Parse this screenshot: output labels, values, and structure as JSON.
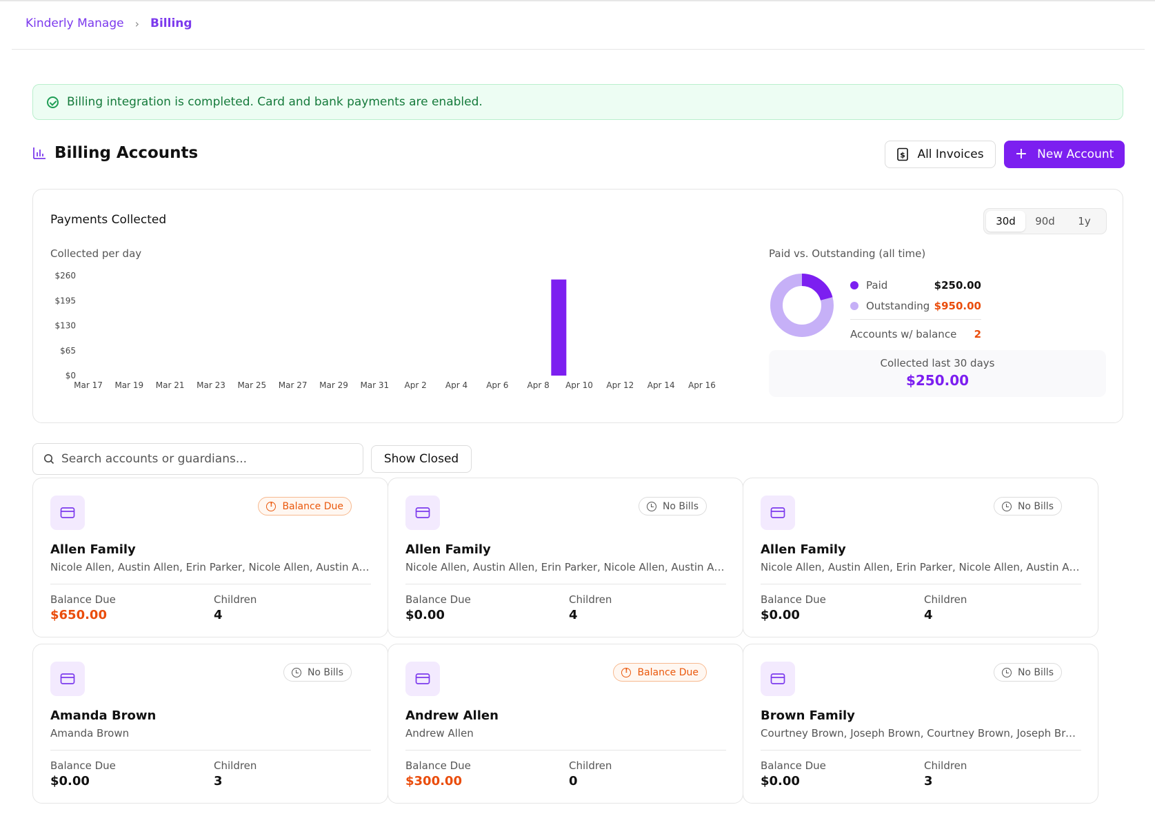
{
  "breadcrumb": {
    "root": "Kinderly Manage",
    "current": "Billing"
  },
  "alert": {
    "message": "Billing integration is completed. Card and bank payments are enabled."
  },
  "section": {
    "title": "Billing Accounts",
    "icon": "bar-chart-icon"
  },
  "actions": {
    "all_invoices": "All Invoices",
    "new_account": "New Account"
  },
  "payments": {
    "title": "Payments Collected",
    "ranges": [
      "30d",
      "90d",
      "1y"
    ],
    "selected_range": "30d",
    "per_day_label": "Collected per day",
    "paid_vs_outstanding_label": "Paid vs. Outstanding (all time)",
    "legend": {
      "paid_label": "Paid",
      "paid_value": "$250.00",
      "outstanding_label": "Outstanding",
      "outstanding_value": "$950.00",
      "accounts_label": "Accounts w/ balance",
      "accounts_value": "2"
    },
    "collected_label": "Collected last 30 days",
    "collected_value": "$250.00",
    "colors": {
      "paid": "#7c1ff0",
      "outstanding": "#c6b0f7",
      "outstanding_text": "#ea4d0c"
    }
  },
  "chart_data": [
    {
      "type": "bar",
      "title": "Collected per day",
      "x": [
        "Mar 17",
        "Mar 18",
        "Mar 19",
        "Mar 20",
        "Mar 21",
        "Mar 22",
        "Mar 23",
        "Mar 24",
        "Mar 25",
        "Mar 26",
        "Mar 27",
        "Mar 28",
        "Mar 29",
        "Mar 30",
        "Mar 31",
        "Apr 1",
        "Apr 2",
        "Apr 3",
        "Apr 4",
        "Apr 5",
        "Apr 6",
        "Apr 7",
        "Apr 8",
        "Apr 9",
        "Apr 10",
        "Apr 11",
        "Apr 12",
        "Apr 13",
        "Apr 14",
        "Apr 15",
        "Apr 16"
      ],
      "x_tick_labels": [
        "Mar 17",
        "Mar 19",
        "Mar 21",
        "Mar 23",
        "Mar 25",
        "Mar 27",
        "Mar 29",
        "Mar 31",
        "Apr 2",
        "Apr 4",
        "Apr 6",
        "Apr 8",
        "Apr 10",
        "Apr 12",
        "Apr 14",
        "Apr 16"
      ],
      "values": [
        0,
        0,
        0,
        0,
        0,
        0,
        0,
        0,
        0,
        0,
        0,
        0,
        0,
        0,
        0,
        0,
        0,
        0,
        0,
        0,
        0,
        0,
        0,
        250,
        0,
        0,
        0,
        0,
        0,
        0,
        0
      ],
      "y_tick_labels": [
        "$0",
        "$65",
        "$130",
        "$195",
        "$260"
      ],
      "y_ticks": [
        0,
        65,
        130,
        195,
        260
      ],
      "ylim": [
        0,
        260
      ],
      "grid": false,
      "color": "#7c1ff0"
    },
    {
      "type": "pie",
      "title": "Paid vs. Outstanding (all time)",
      "categories": [
        "Paid",
        "Outstanding"
      ],
      "values": [
        250,
        950
      ],
      "colors": [
        "#7c1ff0",
        "#c6b0f7"
      ]
    }
  ],
  "search": {
    "placeholder": "Search accounts or guardians..."
  },
  "show_closed": "Show Closed",
  "accounts": [
    {
      "name": "Allen Family",
      "guardians": "Nicole Allen, Austin Allen, Erin Parker, Nicole Allen, Austin Allen, Erin Parker",
      "badge": "Balance Due",
      "badge_type": "due",
      "balance_label": "Balance Due",
      "balance": "$650.00",
      "balance_due": true,
      "children_label": "Children",
      "children": "4"
    },
    {
      "name": "Allen Family",
      "guardians": "Nicole Allen, Austin Allen, Erin Parker, Nicole Allen, Austin Allen, Erin Parker",
      "badge": "No Bills",
      "badge_type": "nobills",
      "balance_label": "Balance Due",
      "balance": "$0.00",
      "balance_due": false,
      "children_label": "Children",
      "children": "4"
    },
    {
      "name": "Allen Family",
      "guardians": "Nicole Allen, Austin Allen, Erin Parker, Nicole Allen, Austin Allen, Erin Parker",
      "badge": "No Bills",
      "badge_type": "nobills",
      "balance_label": "Balance Due",
      "balance": "$0.00",
      "balance_due": false,
      "children_label": "Children",
      "children": "4"
    },
    {
      "name": "Amanda Brown",
      "guardians": "Amanda Brown",
      "badge": "No Bills",
      "badge_type": "nobills",
      "balance_label": "Balance Due",
      "balance": "$0.00",
      "balance_due": false,
      "children_label": "Children",
      "children": "3"
    },
    {
      "name": "Andrew Allen",
      "guardians": "Andrew Allen",
      "badge": "Balance Due",
      "badge_type": "due",
      "balance_label": "Balance Due",
      "balance": "$300.00",
      "balance_due": true,
      "children_label": "Children",
      "children": "0"
    },
    {
      "name": "Brown Family",
      "guardians": "Courtney Brown, Joseph Brown, Courtney Brown, Joseph Brown",
      "badge": "No Bills",
      "badge_type": "nobills",
      "balance_label": "Balance Due",
      "balance": "$0.00",
      "balance_due": false,
      "children_label": "Children",
      "children": "3"
    }
  ]
}
